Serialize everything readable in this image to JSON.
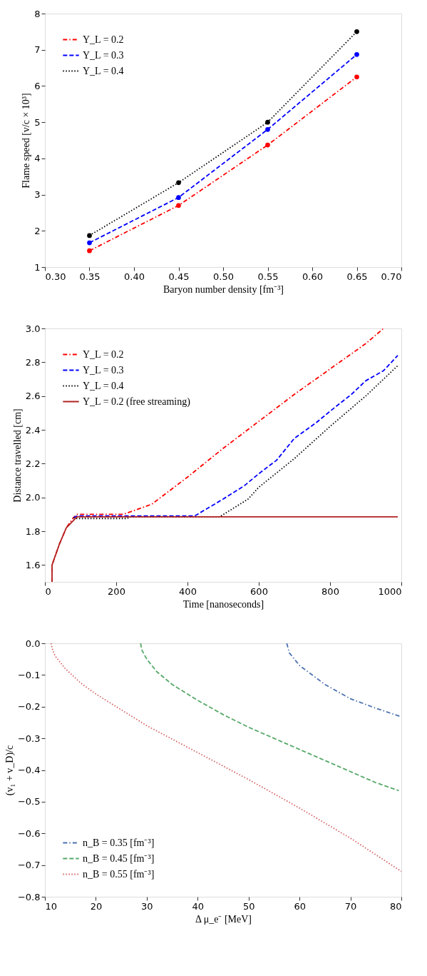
{
  "chart_data": [
    {
      "type": "line",
      "xlabel": "Baryon number density [fm⁻³]",
      "ylabel": "Flame speed [v/c × 10³]",
      "x": [
        0.35,
        0.45,
        0.55,
        0.65
      ],
      "series": [
        {
          "name": "Y_L = 0.2",
          "color": "#ff0000",
          "line_style": "dashdot",
          "values": [
            1.45,
            2.7,
            4.37,
            6.25
          ]
        },
        {
          "name": "Y_L = 0.3",
          "color": "#0000ff",
          "line_style": "dashed",
          "values": [
            1.67,
            2.92,
            4.8,
            6.87
          ]
        },
        {
          "name": "Y_L = 0.4",
          "color": "#000000",
          "line_style": "dotted",
          "values": [
            1.87,
            3.33,
            5.0,
            7.5
          ]
        }
      ],
      "marker": "circle",
      "legend": "top left",
      "grid": false,
      "xlim": [
        0.3,
        0.7
      ],
      "ylim": [
        1,
        8
      ],
      "xticks": [
        {
          "value": 0.3,
          "label": "0.30"
        },
        {
          "value": 0.35,
          "label": "0.35"
        },
        {
          "value": 0.4,
          "label": "0.40"
        },
        {
          "value": 0.45,
          "label": "0.45"
        },
        {
          "value": 0.5,
          "label": "0.50"
        },
        {
          "value": 0.55,
          "label": "0.55"
        },
        {
          "value": 0.6,
          "label": "0.60"
        },
        {
          "value": 0.65,
          "label": "0.65"
        },
        {
          "value": 0.7,
          "label": "0.70"
        }
      ],
      "yticks": [
        1,
        2,
        3,
        4,
        5,
        6,
        7,
        8
      ]
    },
    {
      "type": "line",
      "xlabel": "Time [nanoseconds]",
      "ylabel": "Distance travelled [cm]",
      "series": [
        {
          "name": "Y_L = 0.2",
          "color": "#ff0000",
          "line_style": "dashdot",
          "x": [
            20,
            20,
            40,
            60,
            80,
            90,
            220,
            300,
            400,
            500,
            600,
            700,
            800,
            900,
            950
          ],
          "values": [
            1.5,
            1.6,
            1.72,
            1.82,
            1.88,
            1.9,
            1.9,
            1.96,
            2.12,
            2.29,
            2.45,
            2.61,
            2.76,
            2.91,
            3.0
          ]
        },
        {
          "name": "Y_L = 0.3",
          "color": "#0000ff",
          "line_style": "dashed",
          "x": [
            80,
            90,
            420,
            500,
            560,
            600,
            650,
            700,
            760,
            800,
            860,
            900,
            950,
            990
          ],
          "values": [
            1.88,
            1.89,
            1.89,
            1.99,
            2.07,
            2.14,
            2.22,
            2.35,
            2.44,
            2.51,
            2.61,
            2.69,
            2.75,
            2.84
          ]
        },
        {
          "name": "Y_L = 0.4",
          "color": "#000000",
          "line_style": "dotted",
          "x": [
            80,
            90,
            230,
            240,
            490,
            570,
            600,
            700,
            800,
            900,
            990
          ],
          "values": [
            1.88,
            1.875,
            1.875,
            1.885,
            1.885,
            1.99,
            2.06,
            2.23,
            2.42,
            2.6,
            2.78
          ]
        },
        {
          "name": "Y_L = 0.2 (free streaming)",
          "color": "#b22222",
          "line_style": "solid",
          "x": [
            20,
            20,
            40,
            60,
            90,
            990
          ],
          "values": [
            1.5,
            1.6,
            1.72,
            1.82,
            1.885,
            1.885
          ]
        }
      ],
      "legend": "top left",
      "grid": false,
      "xlim": [
        0,
        1000
      ],
      "ylim": [
        1.5,
        3.0
      ],
      "xticks": [
        0,
        200,
        400,
        600,
        800,
        1000
      ],
      "yticks": [
        {
          "value": 1.6,
          "label": "1.6"
        },
        {
          "value": 1.8,
          "label": "1.8"
        },
        {
          "value": 2.0,
          "label": "2.0"
        },
        {
          "value": 2.2,
          "label": "2.2"
        },
        {
          "value": 2.4,
          "label": "2.4"
        },
        {
          "value": 2.6,
          "label": "2.6"
        },
        {
          "value": 2.8,
          "label": "2.8"
        },
        {
          "value": 3.0,
          "label": "3.0"
        }
      ]
    },
    {
      "type": "line",
      "xlabel": "Δ μ_e⁻ [MeV]",
      "ylabel": "(v₁ + v_D)/c",
      "series": [
        {
          "name": "n_B = 0.35 [fm⁻³]",
          "color": "#4c72b0",
          "line_style": "dashdot",
          "x": [
            57.5,
            58,
            60,
            65,
            70,
            75,
            80
          ],
          "values": [
            0,
            -0.03,
            -0.07,
            -0.13,
            -0.175,
            -0.205,
            -0.232
          ]
        },
        {
          "name": "n_B = 0.45 [fm⁻³]",
          "color": "#55a868",
          "line_style": "dashed",
          "x": [
            28.8,
            29,
            30,
            32,
            35,
            40,
            45,
            50,
            55,
            60,
            65,
            70,
            75,
            79.5
          ],
          "values": [
            0,
            -0.02,
            -0.05,
            -0.09,
            -0.13,
            -0.18,
            -0.225,
            -0.265,
            -0.3,
            -0.335,
            -0.37,
            -0.405,
            -0.44,
            -0.465
          ]
        },
        {
          "name": "n_B = 0.55 [fm⁻³]",
          "color": "#d65f5f",
          "line_style": "dotted",
          "x": [
            11.2,
            11.5,
            12,
            14,
            17,
            20,
            25,
            30,
            40,
            50,
            60,
            70,
            80
          ],
          "values": [
            0,
            -0.02,
            -0.04,
            -0.08,
            -0.125,
            -0.16,
            -0.21,
            -0.26,
            -0.345,
            -0.43,
            -0.52,
            -0.615,
            -0.72
          ]
        }
      ],
      "legend": "bottom left",
      "grid": false,
      "xlim": [
        10,
        80
      ],
      "ylim": [
        -0.8,
        0.0
      ],
      "xticks": [
        10,
        20,
        30,
        40,
        50,
        60,
        70,
        80
      ],
      "yticks": [
        {
          "value": 0.0,
          "label": "0.0"
        },
        {
          "value": -0.1,
          "label": "−0.1"
        },
        {
          "value": -0.2,
          "label": "−0.2"
        },
        {
          "value": -0.3,
          "label": "−0.3"
        },
        {
          "value": -0.4,
          "label": "−0.4"
        },
        {
          "value": -0.5,
          "label": "−0.5"
        },
        {
          "value": -0.6,
          "label": "−0.6"
        },
        {
          "value": -0.7,
          "label": "−0.7"
        },
        {
          "value": -0.8,
          "label": "−0.8"
        }
      ]
    }
  ]
}
